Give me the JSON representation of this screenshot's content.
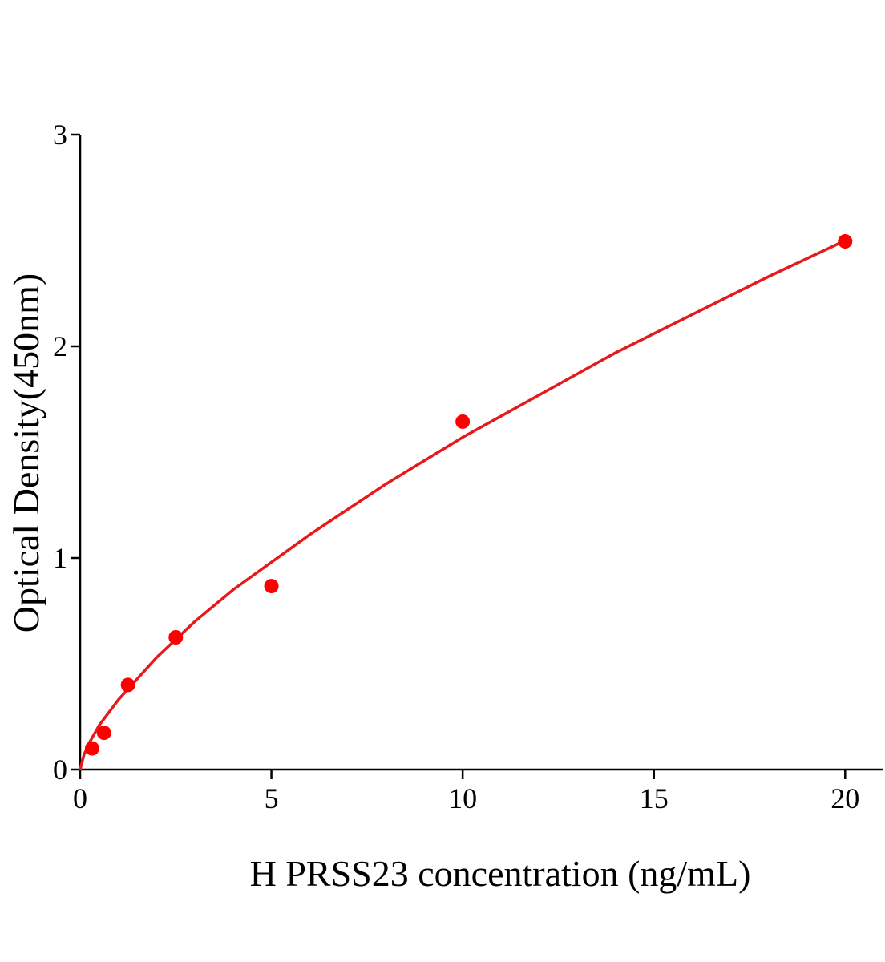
{
  "chart_data": {
    "type": "scatter",
    "x_label": "H PRSS23 concentration (ng/mL)",
    "y_label": "Optical Density(450nm)",
    "xlim": [
      0,
      21
    ],
    "xticks": [
      0,
      5,
      10,
      15,
      20
    ],
    "ylim": [
      0,
      3
    ],
    "yticks": [
      0,
      1,
      2,
      3
    ],
    "series": [
      {
        "type": "scatter",
        "color": "#ff0000",
        "x": [
          0.3125,
          0.625,
          1.25,
          2.5,
          5,
          10,
          20
        ],
        "values": [
          0.1,
          0.174,
          0.4,
          0.625,
          0.867,
          1.644,
          2.496
        ]
      },
      {
        "type": "line",
        "color": "#e41a1c",
        "x": [
          0,
          0.1,
          0.25,
          0.5,
          1,
          2,
          3,
          4,
          5,
          6,
          8,
          10,
          12,
          14,
          16,
          18,
          20
        ],
        "values": [
          0,
          0.07,
          0.13,
          0.21,
          0.33,
          0.53,
          0.7,
          0.85,
          0.98,
          1.11,
          1.35,
          1.57,
          1.77,
          1.97,
          2.15,
          2.33,
          2.5
        ]
      }
    ]
  }
}
